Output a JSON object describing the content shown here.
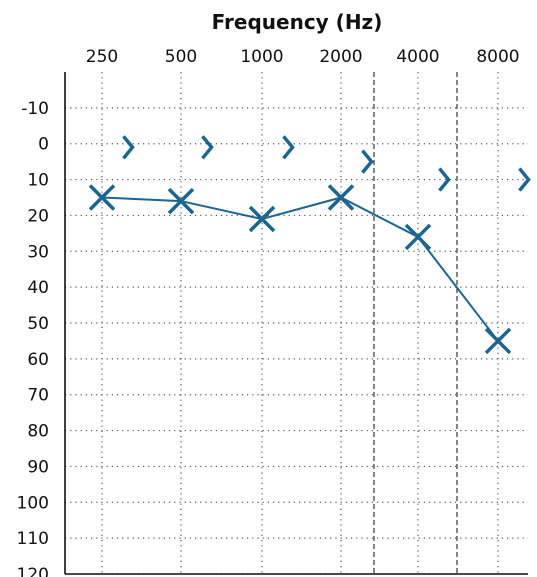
{
  "chart_data": {
    "type": "scatter",
    "title": "Frequency (Hz)",
    "x_categories": [
      "250",
      "500",
      "1000",
      "2000",
      "4000",
      "8000"
    ],
    "y_ticks": [
      "-10",
      "0",
      "10",
      "20",
      "30",
      "40",
      "50",
      "60",
      "70",
      "80",
      "90",
      "100",
      "110",
      "120"
    ],
    "ylim": [
      -20,
      120
    ],
    "y_inverted": true,
    "grid": true,
    "colors": {
      "series": "#1b6591",
      "axis": "#111111",
      "grid": "#555555",
      "text": "#111111"
    },
    "series": [
      {
        "marker": "x",
        "connected": true,
        "points": [
          {
            "x": "250",
            "y": 15
          },
          {
            "x": "500",
            "y": 16
          },
          {
            "x": "1000",
            "y": 21
          },
          {
            "x": "2000",
            "y": 15
          },
          {
            "x": "4000",
            "y": 26
          },
          {
            "x": "8000",
            "y": 55
          }
        ]
      },
      {
        "marker": "chevron-right",
        "connected": false,
        "points": [
          {
            "x": 250,
            "y": 1
          },
          {
            "x": 500,
            "y": 1
          },
          {
            "x": 1000,
            "y": 1
          },
          {
            "x": 2000,
            "y": 5
          },
          {
            "x": 4000,
            "y": 10
          },
          {
            "x": 8000,
            "y": 10
          }
        ]
      }
    ]
  }
}
